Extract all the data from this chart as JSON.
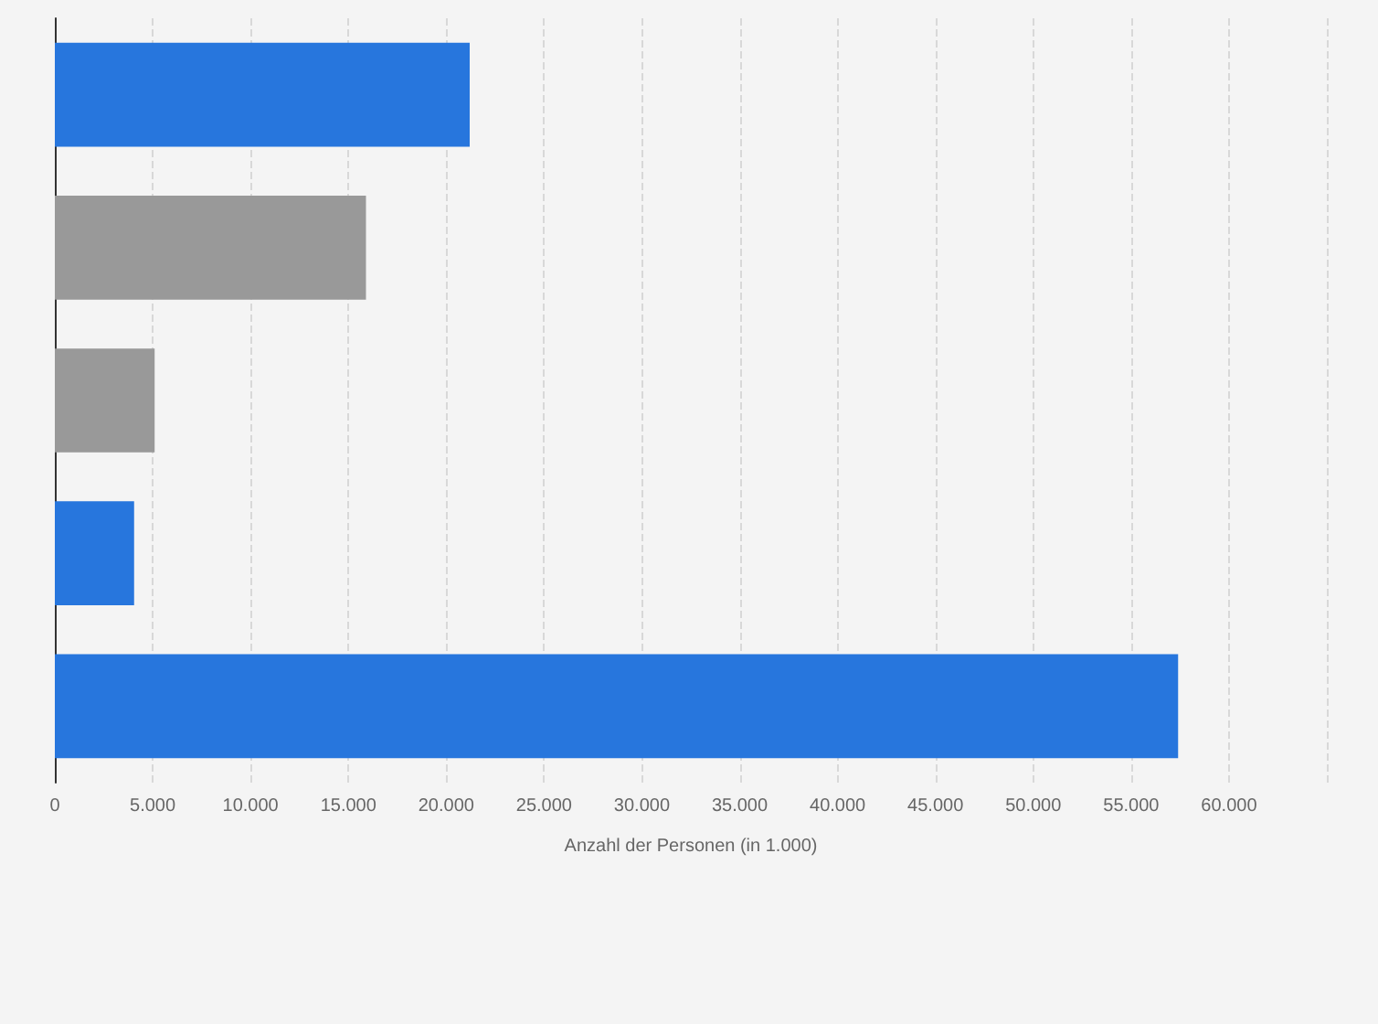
{
  "chart_data": {
    "type": "bar",
    "orientation": "horizontal",
    "xlabel": "Anzahl der Personen (in 1.000)",
    "categories": [
      null,
      null,
      null,
      null,
      null
    ],
    "values": [
      21200,
      15900,
      5100,
      4050,
      57400
    ],
    "colors": [
      "#2776dd",
      "#999999",
      "#999999",
      "#2776dd",
      "#2776dd"
    ],
    "xlim": [
      0,
      65000
    ],
    "xticks": [
      0,
      {
        "value": 5000,
        "label": "5.000"
      },
      {
        "value": 10000,
        "label": "10.000"
      },
      {
        "value": 15000,
        "label": "15.000"
      },
      {
        "value": 20000,
        "label": "20.000"
      },
      {
        "value": 25000,
        "label": "25.000"
      },
      {
        "value": 30000,
        "label": "30.000"
      },
      {
        "value": 35000,
        "label": "35.000"
      },
      {
        "value": 40000,
        "label": "40.000"
      },
      {
        "value": 45000,
        "label": "45.000"
      },
      {
        "value": 50000,
        "label": "50.000"
      },
      {
        "value": 55000,
        "label": "55.000"
      },
      {
        "value": 60000,
        "label": "60.000"
      },
      {
        "value": 65000,
        "label": null
      }
    ],
    "grid": "x"
  }
}
